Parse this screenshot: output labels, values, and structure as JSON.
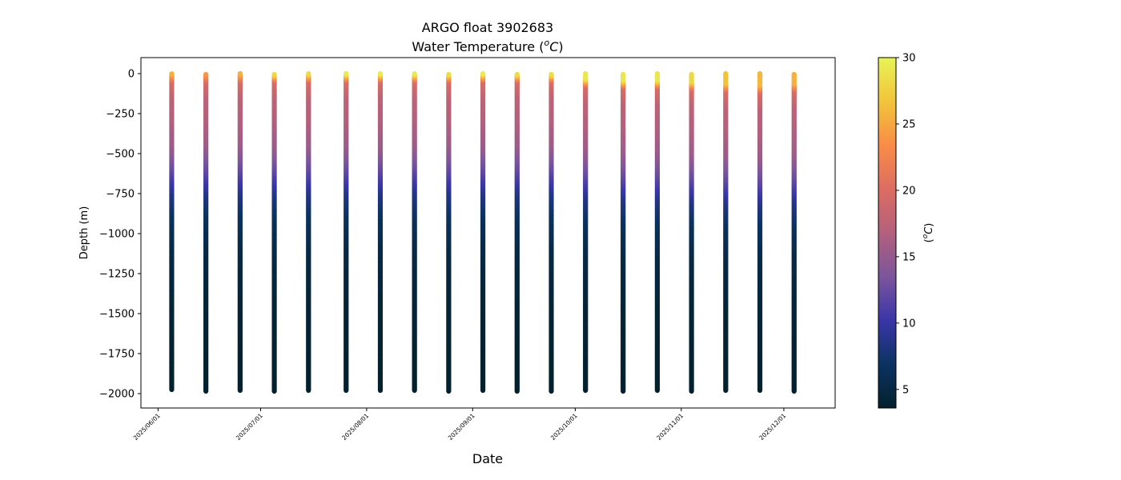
{
  "chart_data": {
    "type": "scatter",
    "title": "ARGO float 3902683",
    "subtitle_prefix": "Water Temperature (",
    "subtitle_unit_sup": "o",
    "subtitle_unit_letter": "C",
    "subtitle_suffix": ")",
    "xlabel": "Date",
    "ylabel": "Depth (m)",
    "colorbar_label_prefix": "(",
    "colorbar_label_sup": "o",
    "colorbar_label_letter": "C",
    "colorbar_label_suffix": ")",
    "colormap": "thermal",
    "colormap_stops": [
      "#03212e",
      "#0b3361",
      "#3a36a8",
      "#7c559c",
      "#b3607d",
      "#dc6d62",
      "#f98c47",
      "#f2c43a",
      "#e8f356"
    ],
    "color_range": [
      3.6,
      30
    ],
    "colorbar_ticks": [
      5,
      10,
      15,
      20,
      25,
      30
    ],
    "ylim": [
      -2090,
      100
    ],
    "yticks": [
      0,
      -250,
      -500,
      -750,
      -1000,
      -1250,
      -1500,
      -1750,
      -2000
    ],
    "ytick_labels": [
      "0",
      "−250",
      "−500",
      "−750",
      "−1000",
      "−1250",
      "−1500",
      "−1750",
      "−2000"
    ],
    "xlim": [
      "2025-05-27",
      "2025-12-16"
    ],
    "xticks": [
      "2025-06-01",
      "2025-07-01",
      "2025-08-01",
      "2025-09-01",
      "2025-10-01",
      "2025-11-01",
      "2025-12-01"
    ],
    "xtick_labels": [
      "2025/06/01",
      "2025/07/01",
      "2025/08/01",
      "2025/09/01",
      "2025/10/01",
      "2025/11/01",
      "2025/12/01"
    ],
    "grid": false,
    "profiles": [
      {
        "date": "2025-06-05",
        "max_depth": 1975,
        "surface_temp": 25.5,
        "mld": 0
      },
      {
        "date": "2025-06-15",
        "max_depth": 1985,
        "surface_temp": 24.5,
        "mld": 0
      },
      {
        "date": "2025-06-25",
        "max_depth": 1980,
        "surface_temp": 25.5,
        "mld": 0
      },
      {
        "date": "2025-07-05",
        "max_depth": 1985,
        "surface_temp": 29.0,
        "mld": 0
      },
      {
        "date": "2025-07-15",
        "max_depth": 1980,
        "surface_temp": 28.5,
        "mld": 0
      },
      {
        "date": "2025-07-26",
        "max_depth": 1980,
        "surface_temp": 29.5,
        "mld": 0
      },
      {
        "date": "2025-08-05",
        "max_depth": 1980,
        "surface_temp": 29.5,
        "mld": 0
      },
      {
        "date": "2025-08-15",
        "max_depth": 1980,
        "surface_temp": 29.5,
        "mld": 0
      },
      {
        "date": "2025-08-25",
        "max_depth": 1985,
        "surface_temp": 29.5,
        "mld": 0
      },
      {
        "date": "2025-09-04",
        "max_depth": 1980,
        "surface_temp": 29.5,
        "mld": 0
      },
      {
        "date": "2025-09-14",
        "max_depth": 1985,
        "surface_temp": 29.5,
        "mld": 0
      },
      {
        "date": "2025-09-24",
        "max_depth": 1985,
        "surface_temp": 29.5,
        "mld": 0
      },
      {
        "date": "2025-10-04",
        "max_depth": 1980,
        "surface_temp": 29.0,
        "mld": 30
      },
      {
        "date": "2025-10-15",
        "max_depth": 1985,
        "surface_temp": 29.0,
        "mld": 40
      },
      {
        "date": "2025-10-25",
        "max_depth": 1980,
        "surface_temp": 29.0,
        "mld": 40
      },
      {
        "date": "2025-11-04",
        "max_depth": 1985,
        "surface_temp": 28.0,
        "mld": 50
      },
      {
        "date": "2025-11-14",
        "max_depth": 1980,
        "surface_temp": 26.5,
        "mld": 60
      },
      {
        "date": "2025-11-24",
        "max_depth": 1980,
        "surface_temp": 26.0,
        "mld": 70
      },
      {
        "date": "2025-12-04",
        "max_depth": 1985,
        "surface_temp": 25.5,
        "mld": 60
      }
    ]
  }
}
